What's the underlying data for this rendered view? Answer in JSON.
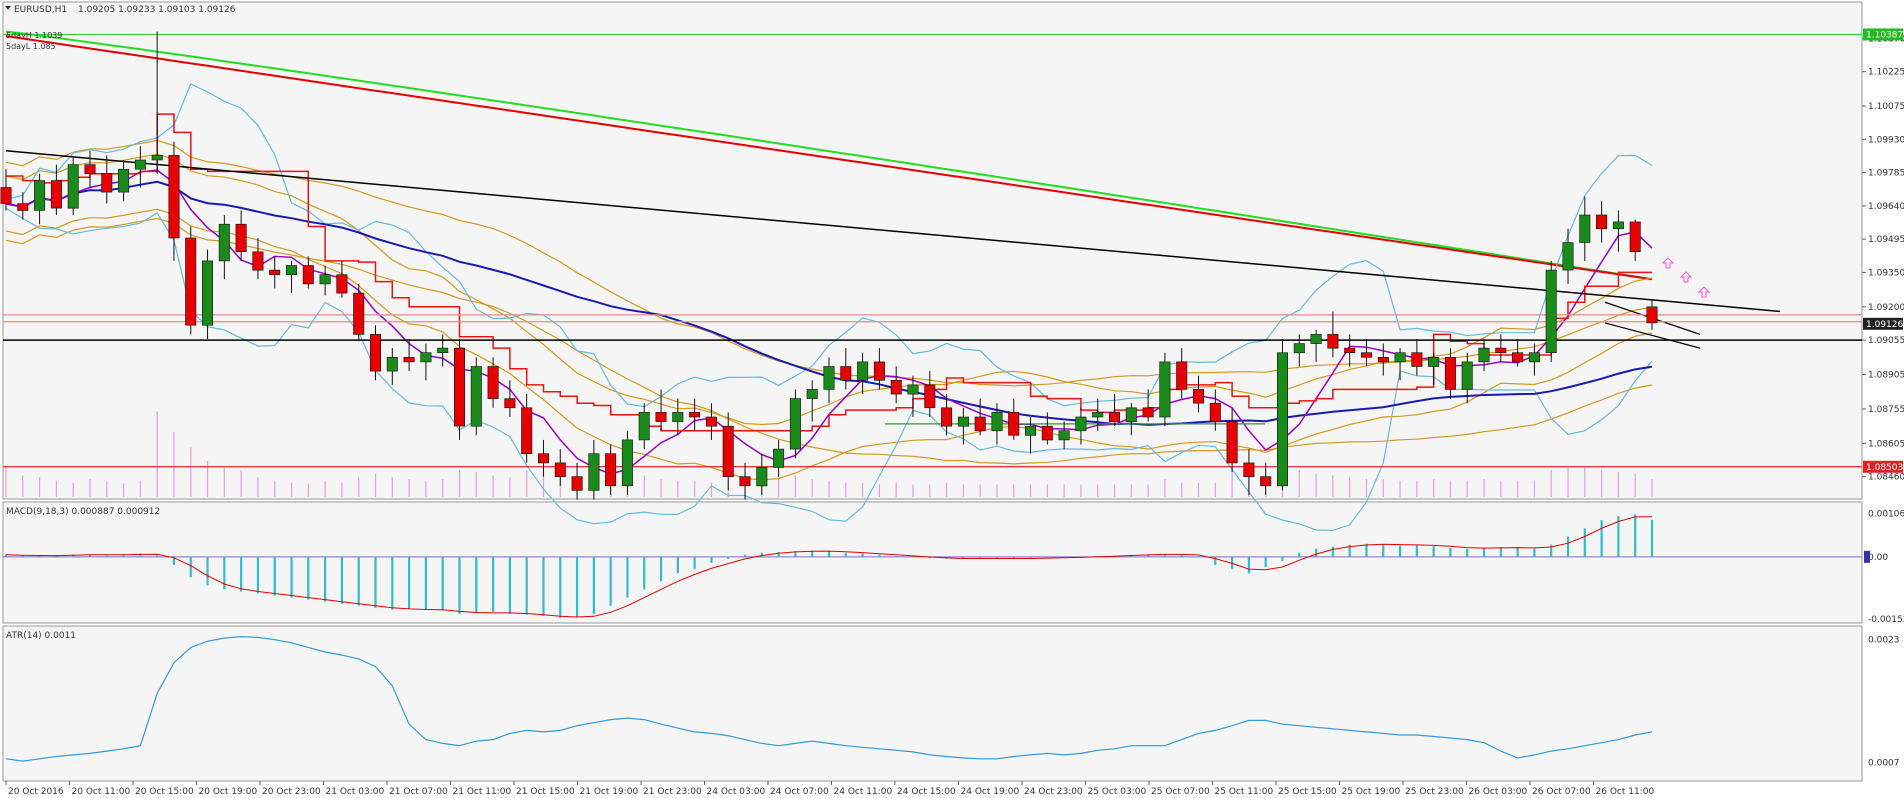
{
  "chart_data": [
    {
      "type": "candlestick",
      "panel": "main",
      "header": {
        "symbol": "EURUSD,H1",
        "values": "1.09205 1.09233 1.09103 1.09126"
      },
      "legend": [
        "5dayH 1.1039",
        "5dayL 1.085"
      ],
      "ylim": [
        1.0838,
        1.1045
      ],
      "y_ticks": [
        "1.10370",
        "1.10225",
        "1.10075",
        "1.09930",
        "1.09785",
        "1.09640",
        "1.09495",
        "1.09350",
        "1.09200",
        "1.09055",
        "1.08905",
        "1.08755",
        "1.08605",
        "1.08460"
      ],
      "price_tags": [
        {
          "label": "1.10387",
          "value": 1.10387,
          "color": "#22bb22"
        },
        {
          "label": "1.09126",
          "value": 1.09126,
          "color": "#222222"
        },
        {
          "label": "1.08503",
          "value": 1.08503,
          "color": "#dd2222"
        }
      ],
      "horizontal_lines": [
        {
          "value": 1.10387,
          "color": "#33cc33"
        },
        {
          "value": 1.09165,
          "color": "#e58a8a"
        },
        {
          "value": 1.09135,
          "color": "#e58a8a"
        },
        {
          "value": 1.09055,
          "color": "#000000"
        },
        {
          "value": 1.08503,
          "color": "#dd2222"
        }
      ],
      "colors": {
        "bull": "#1a8a1a",
        "bear": "#e60000",
        "sma_long": "#22dd22",
        "ema_long": "#e60000",
        "trend": "#000000",
        "ma_blue": "#1a1ab0",
        "ma_purple": "#9900cc",
        "bb": "#66bbdd",
        "env": "#d49a1e",
        "tenkan": "#ee1111"
      },
      "ohlc": [
        [
          1.0972,
          1.098,
          1.0962,
          1.0965
        ],
        [
          1.0965,
          1.097,
          1.0958,
          1.0962
        ],
        [
          1.0962,
          1.0978,
          1.0956,
          1.0975
        ],
        [
          1.0975,
          1.0982,
          1.096,
          1.0963
        ],
        [
          1.0963,
          1.0985,
          1.096,
          1.0982
        ],
        [
          1.0982,
          1.0988,
          1.0972,
          1.0978
        ],
        [
          1.0978,
          1.0986,
          1.0965,
          1.097
        ],
        [
          1.097,
          1.0984,
          1.0966,
          1.098
        ],
        [
          1.098,
          1.099,
          1.0972,
          1.0984
        ],
        [
          1.0984,
          1.104,
          1.0978,
          1.0986
        ],
        [
          1.0986,
          1.0992,
          1.094,
          1.095
        ],
        [
          1.095,
          1.0955,
          1.0908,
          1.0912
        ],
        [
          1.0912,
          1.0945,
          1.0906,
          1.094
        ],
        [
          1.094,
          1.096,
          1.0932,
          1.0956
        ],
        [
          1.0956,
          1.0962,
          1.094,
          1.0944
        ],
        [
          1.0944,
          1.095,
          1.0932,
          1.0936
        ],
        [
          1.0936,
          1.0942,
          1.0928,
          1.0934
        ],
        [
          1.0934,
          1.094,
          1.0926,
          1.0938
        ],
        [
          1.0938,
          1.0942,
          1.0928,
          1.093
        ],
        [
          1.093,
          1.0938,
          1.0925,
          1.0934
        ],
        [
          1.0934,
          1.094,
          1.0924,
          1.0926
        ],
        [
          1.0926,
          1.093,
          1.0905,
          1.0908
        ],
        [
          1.0908,
          1.0912,
          1.0888,
          1.0892
        ],
        [
          1.0892,
          1.0902,
          1.0886,
          1.0898
        ],
        [
          1.0898,
          1.0906,
          1.0892,
          1.0896
        ],
        [
          1.0896,
          1.0904,
          1.0888,
          1.09
        ],
        [
          1.09,
          1.0908,
          1.0894,
          1.0902
        ],
        [
          1.0902,
          1.0906,
          1.0862,
          1.0868
        ],
        [
          1.0868,
          1.0898,
          1.0864,
          1.0894
        ],
        [
          1.0894,
          1.0898,
          1.0876,
          1.088
        ],
        [
          1.088,
          1.0888,
          1.0872,
          1.0876
        ],
        [
          1.0876,
          1.0882,
          1.0852,
          1.0856
        ],
        [
          1.0856,
          1.0862,
          1.0846,
          1.0852
        ],
        [
          1.0852,
          1.0858,
          1.0842,
          1.0846
        ],
        [
          1.0846,
          1.0852,
          1.0836,
          1.084
        ],
        [
          1.084,
          1.0862,
          1.0836,
          1.0856
        ],
        [
          1.0856,
          1.086,
          1.0838,
          1.0842
        ],
        [
          1.0842,
          1.0866,
          1.0838,
          1.0862
        ],
        [
          1.0862,
          1.0878,
          1.0858,
          1.0874
        ],
        [
          1.0874,
          1.0884,
          1.0866,
          1.087
        ],
        [
          1.087,
          1.088,
          1.0864,
          1.0874
        ],
        [
          1.0874,
          1.088,
          1.0866,
          1.0872
        ],
        [
          1.0872,
          1.0878,
          1.0862,
          1.0868
        ],
        [
          1.0868,
          1.0874,
          1.084,
          1.0846
        ],
        [
          1.0846,
          1.0852,
          1.0836,
          1.0842
        ],
        [
          1.0842,
          1.0856,
          1.0838,
          1.085
        ],
        [
          1.085,
          1.0862,
          1.0846,
          1.0858
        ],
        [
          1.0858,
          1.0884,
          1.0854,
          1.088
        ],
        [
          1.088,
          1.0888,
          1.087,
          1.0884
        ],
        [
          1.0884,
          1.0898,
          1.0878,
          1.0894
        ],
        [
          1.0894,
          1.0902,
          1.0884,
          1.0888
        ],
        [
          1.0888,
          1.09,
          1.0882,
          1.0896
        ],
        [
          1.0896,
          1.0902,
          1.0884,
          1.0888
        ],
        [
          1.0888,
          1.0894,
          1.0878,
          1.0882
        ],
        [
          1.0882,
          1.089,
          1.0872,
          1.0886
        ],
        [
          1.0886,
          1.0892,
          1.0872,
          1.0876
        ],
        [
          1.0876,
          1.0882,
          1.0864,
          1.0868
        ],
        [
          1.0868,
          1.0876,
          1.086,
          1.0872
        ],
        [
          1.0872,
          1.088,
          1.0864,
          1.0866
        ],
        [
          1.0866,
          1.0878,
          1.086,
          1.0874
        ],
        [
          1.0874,
          1.088,
          1.0862,
          1.0864
        ],
        [
          1.0864,
          1.0872,
          1.0856,
          1.0868
        ],
        [
          1.0868,
          1.0874,
          1.086,
          1.0862
        ],
        [
          1.0862,
          1.087,
          1.0858,
          1.0866
        ],
        [
          1.0866,
          1.0876,
          1.086,
          1.0872
        ],
        [
          1.0872,
          1.088,
          1.0866,
          1.0874
        ],
        [
          1.0874,
          1.0882,
          1.0868,
          1.087
        ],
        [
          1.087,
          1.0878,
          1.0864,
          1.0876
        ],
        [
          1.0876,
          1.0884,
          1.087,
          1.0872
        ],
        [
          1.0872,
          1.09,
          1.0868,
          1.0896
        ],
        [
          1.0896,
          1.0902,
          1.088,
          1.0884
        ],
        [
          1.0884,
          1.089,
          1.0874,
          1.0878
        ],
        [
          1.0878,
          1.0884,
          1.0866,
          1.087
        ],
        [
          1.087,
          1.0876,
          1.0848,
          1.0852
        ],
        [
          1.0852,
          1.0858,
          1.0838,
          1.0846
        ],
        [
          1.0846,
          1.0852,
          1.0838,
          1.0842
        ],
        [
          1.0842,
          1.0906,
          1.084,
          1.09
        ],
        [
          1.09,
          1.0908,
          1.0894,
          1.0904
        ],
        [
          1.0904,
          1.091,
          1.0896,
          1.0908
        ],
        [
          1.0908,
          1.0918,
          1.0898,
          1.0902
        ],
        [
          1.0902,
          1.0908,
          1.0894,
          1.09
        ],
        [
          1.09,
          1.0906,
          1.0894,
          1.0898
        ],
        [
          1.0898,
          1.0904,
          1.089,
          1.0896
        ],
        [
          1.0896,
          1.0902,
          1.0888,
          1.09
        ],
        [
          1.09,
          1.0906,
          1.089,
          1.0894
        ],
        [
          1.0894,
          1.09,
          1.0886,
          1.0898
        ],
        [
          1.0898,
          1.0902,
          1.088,
          1.0884
        ],
        [
          1.0884,
          1.09,
          1.0878,
          1.0896
        ],
        [
          1.0896,
          1.0906,
          1.0892,
          1.0902
        ],
        [
          1.0902,
          1.0908,
          1.0896,
          1.09
        ],
        [
          1.09,
          1.0906,
          1.0894,
          1.0896
        ],
        [
          1.0896,
          1.0904,
          1.089,
          1.09
        ],
        [
          1.09,
          1.094,
          1.0896,
          1.0936
        ],
        [
          1.0936,
          1.0954,
          1.093,
          1.0948
        ],
        [
          1.0948,
          1.0968,
          1.094,
          1.096
        ],
        [
          1.096,
          1.0966,
          1.0948,
          1.0954
        ],
        [
          1.0954,
          1.0962,
          1.0944,
          1.0957
        ],
        [
          1.0957,
          1.0958,
          1.094,
          1.0944
        ],
        [
          1.092,
          1.0923,
          1.091,
          1.0913
        ]
      ],
      "volume": [
        0.34,
        0.24,
        0.22,
        0.18,
        0.16,
        0.2,
        0.17,
        0.15,
        0.18,
        0.95,
        0.72,
        0.55,
        0.4,
        0.32,
        0.3,
        0.22,
        0.18,
        0.16,
        0.15,
        0.18,
        0.16,
        0.22,
        0.26,
        0.22,
        0.2,
        0.18,
        0.2,
        0.3,
        0.28,
        0.24,
        0.22,
        0.3,
        0.34,
        0.3,
        0.26,
        0.24,
        0.22,
        0.2,
        0.24,
        0.2,
        0.18,
        0.18,
        0.16,
        0.2,
        0.2,
        0.18,
        0.2,
        0.24,
        0.2,
        0.18,
        0.16,
        0.16,
        0.14,
        0.16,
        0.14,
        0.14,
        0.16,
        0.14,
        0.14,
        0.14,
        0.14,
        0.14,
        0.14,
        0.14,
        0.14,
        0.14,
        0.14,
        0.14,
        0.14,
        0.2,
        0.16,
        0.16,
        0.16,
        0.3,
        0.32,
        0.28,
        0.5,
        0.3,
        0.26,
        0.24,
        0.22,
        0.2,
        0.2,
        0.18,
        0.18,
        0.2,
        0.18,
        0.18,
        0.2,
        0.18,
        0.18,
        0.18,
        0.3,
        0.32,
        0.34,
        0.3,
        0.28,
        0.26,
        0.2
      ],
      "x_labels": [
        "20 Oct 2016",
        "20 Oct 11:00",
        "20 Oct 15:00",
        "20 Oct 19:00",
        "20 Oct 23:00",
        "21 Oct 03:00",
        "21 Oct 07:00",
        "21 Oct 11:00",
        "21 Oct 15:00",
        "21 Oct 19:00",
        "21 Oct 23:00",
        "24 Oct 03:00",
        "24 Oct 07:00",
        "24 Oct 11:00",
        "24 Oct 15:00",
        "24 Oct 19:00",
        "24 Oct 23:00",
        "25 Oct 03:00",
        "25 Oct 07:00",
        "25 Oct 11:00",
        "25 Oct 15:00",
        "25 Oct 19:00",
        "25 Oct 23:00",
        "26 Oct 03:00",
        "26 Oct 07:00",
        "26 Oct 11:00"
      ]
    },
    {
      "type": "bar",
      "panel": "macd",
      "title": "MACD(9,18,3) 0.000887 0.000912",
      "ylim": [
        -0.00155,
        0.0011
      ],
      "y_ticks": [
        "0.001064",
        "0.00",
        "-0.001523"
      ],
      "zero_tag": "0.00",
      "values": [
        5e-05,
        3e-05,
        2e-05,
        4e-05,
        6e-05,
        5e-05,
        4e-05,
        6e-05,
        8e-05,
        5e-05,
        -0.0002,
        -0.0005,
        -0.0007,
        -0.0008,
        -0.00085,
        -0.0009,
        -0.00095,
        -0.001,
        -0.00105,
        -0.0011,
        -0.00115,
        -0.0012,
        -0.00125,
        -0.0013,
        -0.00128,
        -0.0013,
        -0.00132,
        -0.0014,
        -0.00138,
        -0.00135,
        -0.0014,
        -0.00142,
        -0.00145,
        -0.0015,
        -0.00148,
        -0.0014,
        -0.0012,
        -0.001,
        -0.0008,
        -0.0006,
        -0.0004,
        -0.0003,
        -0.00015,
        -5e-05,
        5e-05,
        0.0001,
        0.00012,
        0.00014,
        0.00015,
        0.00013,
        0.0001,
        8e-05,
        5e-05,
        2e-05,
        0.0,
        -3e-05,
        -5e-05,
        -4e-05,
        -3e-05,
        -5e-05,
        -4e-05,
        -3e-05,
        -2e-05,
        -2e-05,
        0.0,
        2e-05,
        3e-05,
        5e-05,
        6e-05,
        7e-05,
        5e-05,
        2e-05,
        -0.0002,
        -0.0003,
        -0.0004,
        -0.00025,
        -0.0001,
        0.0001,
        0.0002,
        0.00025,
        0.0003,
        0.00032,
        0.0003,
        0.00028,
        0.0003,
        0.00026,
        0.00022,
        0.0002,
        0.00022,
        0.00024,
        0.00022,
        0.0002,
        0.0003,
        0.0005,
        0.0007,
        0.0009,
        0.001,
        0.00104,
        0.000912
      ],
      "signal_color": "#e60000",
      "bar_color": "#33bbcc"
    },
    {
      "type": "line",
      "panel": "atr",
      "title": "ATR(14) 0.0011",
      "ylim": [
        0.0005,
        0.0024
      ],
      "y_ticks": [
        "0.0023",
        "0.0007"
      ],
      "color": "#3399dd",
      "values": [
        0.00075,
        0.00072,
        0.00075,
        0.00078,
        0.0008,
        0.00082,
        0.00085,
        0.00088,
        0.00092,
        0.0016,
        0.002,
        0.0022,
        0.00228,
        0.00232,
        0.00234,
        0.00233,
        0.0023,
        0.00226,
        0.0022,
        0.00214,
        0.0021,
        0.00205,
        0.00195,
        0.0017,
        0.0012,
        0.001,
        0.00095,
        0.00092,
        0.00098,
        0.001,
        0.00108,
        0.00112,
        0.0011,
        0.00112,
        0.00118,
        0.00122,
        0.00126,
        0.00128,
        0.00126,
        0.0012,
        0.00115,
        0.0011,
        0.00108,
        0.00105,
        0.001,
        0.00095,
        0.00092,
        0.00095,
        0.00098,
        0.00095,
        0.00092,
        0.0009,
        0.00088,
        0.00086,
        0.00084,
        0.0008,
        0.00078,
        0.00076,
        0.00075,
        0.00075,
        0.00078,
        0.0008,
        0.00082,
        0.0008,
        0.00082,
        0.00086,
        0.00088,
        0.00092,
        0.00092,
        0.00092,
        0.001,
        0.00108,
        0.00112,
        0.00118,
        0.00125,
        0.00125,
        0.0012,
        0.00118,
        0.00116,
        0.00114,
        0.00112,
        0.0011,
        0.00108,
        0.00106,
        0.00106,
        0.00104,
        0.00102,
        0.001,
        0.00096,
        0.00085,
        0.00076,
        0.0008,
        0.00085,
        0.00088,
        0.00092,
        0.00096,
        0.001,
        0.00106,
        0.0011
      ]
    }
  ]
}
